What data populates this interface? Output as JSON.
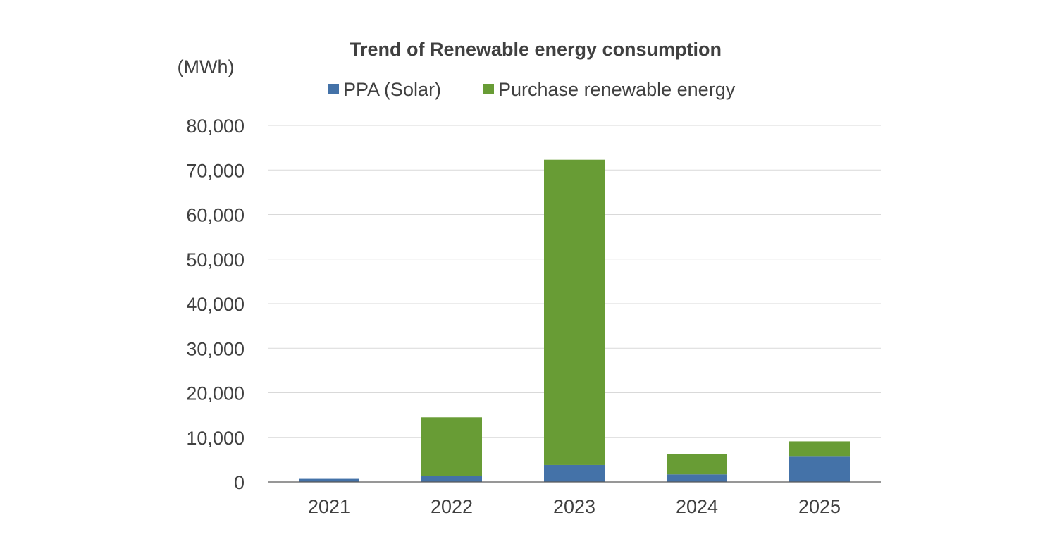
{
  "chart_data": {
    "type": "bar",
    "stacked": true,
    "title": "Trend of Renewable energy consumption",
    "ylabel": "(MWh)",
    "xlabel": "",
    "categories": [
      "2021",
      "2022",
      "2023",
      "2024",
      "2025"
    ],
    "series": [
      {
        "name": "PPA (Solar)",
        "color": "#4472a8",
        "values": [
          700,
          1300,
          3800,
          1700,
          5800
        ]
      },
      {
        "name": "Purchase renewable energy",
        "color": "#689c35",
        "values": [
          0,
          13200,
          68500,
          4600,
          3300
        ]
      }
    ],
    "ylim": [
      0,
      80000
    ],
    "yticks": [
      0,
      10000,
      20000,
      30000,
      40000,
      50000,
      60000,
      70000,
      80000
    ],
    "ytick_labels": [
      "0",
      "10,000",
      "20,000",
      "30,000",
      "40,000",
      "50,000",
      "60,000",
      "70,000",
      "80,000"
    ],
    "grid": true,
    "legend_position": "top-center"
  }
}
